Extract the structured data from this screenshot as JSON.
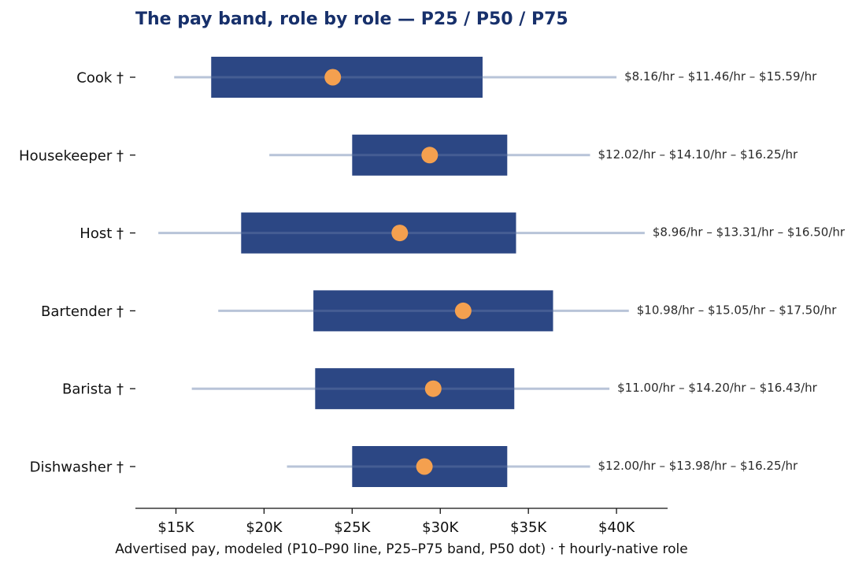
{
  "chart_data": {
    "type": "range-bar",
    "title": "The pay band, role by role — P25 / P50 / P75",
    "xlabel": "Advertised pay, modeled (P10–P90 line, P25–P75 band, P50 dot) · † hourly-native role",
    "ylabel": "",
    "xlim": [
      12700,
      42900
    ],
    "xticks": [
      15000,
      20000,
      25000,
      30000,
      35000,
      40000
    ],
    "xtick_labels": [
      "$15K",
      "$20K",
      "$25K",
      "$30K",
      "$35K",
      "$40K"
    ],
    "grid": false,
    "legend": "none",
    "colors": {
      "band": "#2c4784",
      "whisker": "#b8c4d8",
      "median": "#f4a04f",
      "title": "#17306b"
    },
    "roles": [
      {
        "name": "Cook †",
        "p10": 14900,
        "p25": 17000,
        "p50": 23900,
        "p75": 32400,
        "p90": 40000,
        "annotation": "$8.16/hr – $11.46/hr – $15.59/hr"
      },
      {
        "name": "Housekeeper †",
        "p10": 20300,
        "p25": 25000,
        "p50": 29400,
        "p75": 33800,
        "p90": 38500,
        "annotation": "$12.02/hr – $14.10/hr – $16.25/hr"
      },
      {
        "name": "Host †",
        "p10": 14000,
        "p25": 18700,
        "p50": 27700,
        "p75": 34300,
        "p90": 41600,
        "annotation": "$8.96/hr – $13.31/hr – $16.50/hr"
      },
      {
        "name": "Bartender †",
        "p10": 17400,
        "p25": 22800,
        "p50": 31300,
        "p75": 36400,
        "p90": 40700,
        "annotation": "$10.98/hr – $15.05/hr – $17.50/hr"
      },
      {
        "name": "Barista †",
        "p10": 15900,
        "p25": 22900,
        "p50": 29600,
        "p75": 34200,
        "p90": 39600,
        "annotation": "$11.00/hr – $14.20/hr – $16.43/hr"
      },
      {
        "name": "Dishwasher †",
        "p10": 21300,
        "p25": 25000,
        "p50": 29100,
        "p75": 33800,
        "p90": 38500,
        "annotation": "$12.00/hr – $13.98/hr – $16.25/hr"
      }
    ]
  }
}
